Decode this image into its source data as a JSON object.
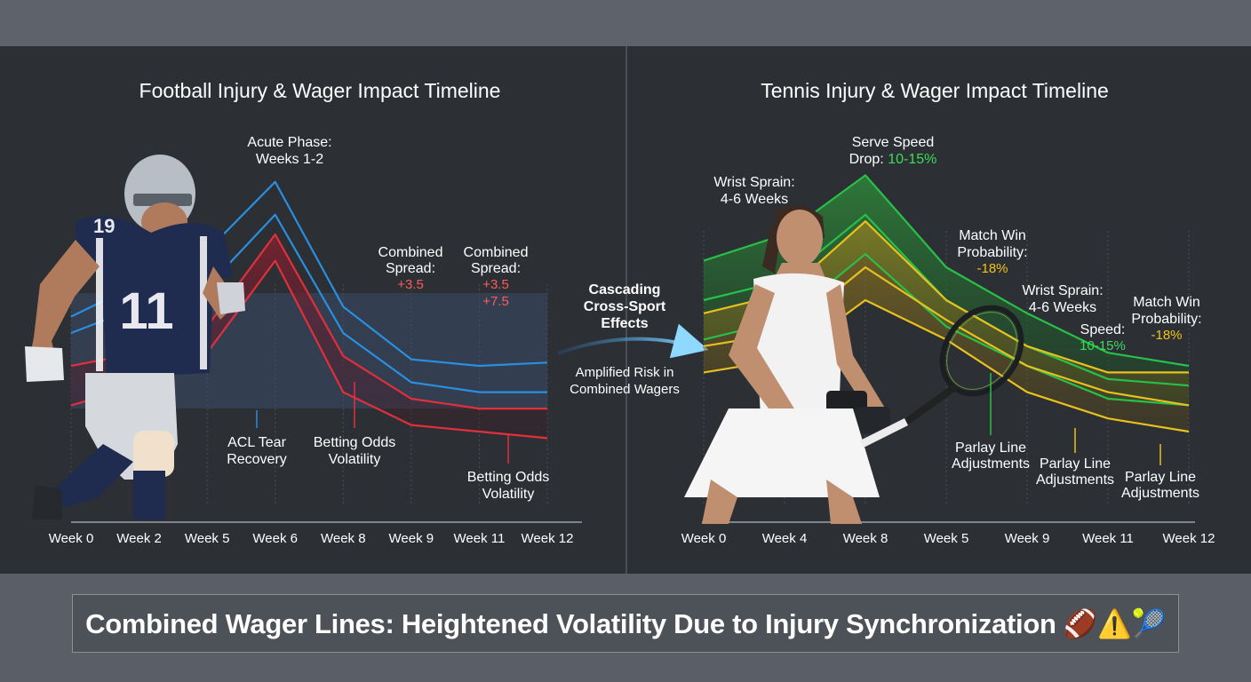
{
  "football": {
    "title": "Football Injury & Wager Impact Timeline",
    "annotations": {
      "acute_line1": "Acute Phase:",
      "acute_line2": "Weeks 1-2",
      "spread1_line1": "Combined",
      "spread1_line2": "Spread:",
      "spread1_value": "+3.5",
      "spread2_line1": "Combined",
      "spread2_line2": "Spread:",
      "spread2_value1": "+3.5",
      "spread2_value2": "+7.5",
      "acl_line1": "ACL Tear",
      "acl_line2": "Recovery",
      "odds1_line1": "Betting Odds",
      "odds1_line2": "Volatility",
      "odds2_line1": "Betting Odds",
      "odds2_line2": "Volatility"
    }
  },
  "tennis": {
    "title": "Tennis Injury & Wager Impact Timeline",
    "annotations": {
      "wrist1_line1": "Wrist Sprain:",
      "wrist1_line2": "4-6 Weeks",
      "serve_line1": "Serve Speed",
      "serve_line2a": "Drop: ",
      "serve_line2b": "10-15%",
      "mwp1_line1": "Match Win",
      "mwp1_line2": "Probability:",
      "mwp1_value": "-18%",
      "wrist2_line1": "Wrist Sprain:",
      "wrist2_line2": "4-6 Weeks",
      "speed_line1": "Speed:",
      "speed_line2": "10-15%",
      "mwp2_line1": "Match Win",
      "mwp2_line2": "Probability:",
      "mwp2_value": "-18%",
      "parlay1_line1": "Parlay Line",
      "parlay1_line2": "Adjustments",
      "parlay2_line1": "Parlay Line",
      "parlay2_line2": "Adjustments",
      "parlay3_line1": "Parlay Line",
      "parlay3_line2": "Adjustments"
    }
  },
  "center": {
    "line1": "Cascading",
    "line2": "Cross-Sport",
    "line3": "Effects",
    "sub1": "Amplified Risk in",
    "sub2": "Combined Wagers"
  },
  "banner": {
    "text": "Combined Wager Lines: Heightened Volatility Due to Injury Synchronization 🏈⚠️🎾"
  },
  "colors": {
    "blue": "#2a8fe0",
    "red": "#e0303c",
    "green": "#28c048",
    "yellow": "#e8c020",
    "spread_red": "#ff5a5a",
    "highlight_green": "#3ddc5a",
    "highlight_yellow": "#f0c419",
    "arrow": "#5ab8f0"
  },
  "chart_data": [
    {
      "type": "line",
      "title": "Football Injury & Wager Impact Timeline",
      "categories": [
        "Week 0",
        "Week 2",
        "Week 5",
        "Week 6",
        "Week 8",
        "Week 9",
        "Week 11",
        "Week 12"
      ],
      "series": [
        {
          "color": "#2a8fe0",
          "values": [
            55,
            65,
            75,
            96,
            58,
            42,
            40,
            41
          ]
        },
        {
          "color": "#2a8fe0",
          "values": [
            50,
            58,
            64,
            86,
            50,
            35,
            32,
            32
          ]
        },
        {
          "color": "#e0303c",
          "values": [
            40,
            44,
            52,
            80,
            43,
            30,
            27,
            27
          ]
        },
        {
          "color": "#e0303c",
          "values": [
            28,
            34,
            44,
            72,
            32,
            22,
            20,
            18
          ]
        }
      ],
      "ylim": [
        0,
        100
      ],
      "grid": true
    },
    {
      "type": "area",
      "title": "Tennis Injury & Wager Impact Timeline",
      "categories": [
        "Week 0",
        "Week 4",
        "Week 8",
        "Week 5",
        "Week 9",
        "Week 11",
        "Week 12"
      ],
      "series": [
        {
          "color": "#28c048",
          "values": [
            72,
            80,
            98,
            70,
            56,
            44,
            40
          ]
        },
        {
          "color": "#28c048",
          "values": [
            60,
            66,
            86,
            60,
            46,
            36,
            34
          ]
        },
        {
          "color": "#28c048",
          "values": [
            48,
            54,
            74,
            52,
            40,
            30,
            28
          ]
        },
        {
          "color": "#e8c020",
          "values": [
            56,
            62,
            84,
            60,
            46,
            38,
            38
          ]
        },
        {
          "color": "#e8c020",
          "values": [
            46,
            50,
            70,
            54,
            40,
            32,
            28
          ]
        },
        {
          "color": "#e8c020",
          "values": [
            38,
            42,
            60,
            48,
            32,
            24,
            20
          ]
        }
      ],
      "ylim": [
        0,
        100
      ],
      "grid": true
    }
  ]
}
